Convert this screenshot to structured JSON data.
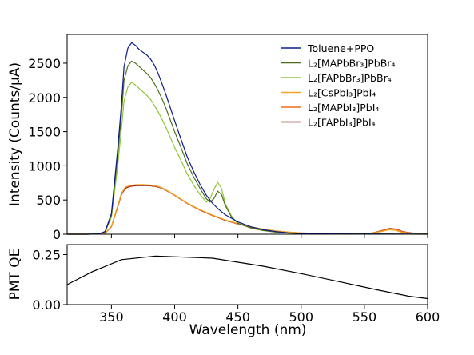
{
  "chart_data": [
    {
      "type": "line",
      "ylabel": "Intensity (Counts/μA)",
      "xlim": [
        315,
        600
      ],
      "ylim": [
        0,
        2920
      ],
      "yticks": [
        0,
        500,
        1000,
        1500,
        2000,
        2500
      ],
      "ytick_labels": [
        "0",
        "500",
        "1000",
        "1500",
        "2000",
        "2500"
      ],
      "grid": false,
      "legend_position": "top-right",
      "series": [
        {
          "name": "Toluene+PPO",
          "color": "#0d1a8c",
          "x": [
            315,
            330,
            340,
            345,
            350,
            355,
            358,
            360,
            363,
            366,
            369,
            372,
            375,
            378,
            381,
            384,
            387,
            390,
            393,
            396,
            400,
            405,
            410,
            415,
            420,
            425,
            430,
            435,
            440,
            450,
            460,
            470,
            480,
            490,
            500,
            520,
            540,
            560,
            580,
            600
          ],
          "y": [
            0,
            0,
            5,
            40,
            300,
            1250,
            1900,
            2450,
            2720,
            2800,
            2760,
            2700,
            2660,
            2620,
            2560,
            2470,
            2350,
            2200,
            2050,
            1880,
            1660,
            1390,
            1130,
            920,
            730,
            570,
            450,
            360,
            285,
            180,
            110,
            65,
            38,
            20,
            12,
            5,
            4,
            3,
            2,
            1
          ]
        },
        {
          "name": "L₂[MAPbBr₃]PbBr₄",
          "color": "#4e6e1e",
          "x": [
            315,
            330,
            340,
            345,
            350,
            355,
            358,
            360,
            363,
            366,
            369,
            372,
            375,
            378,
            381,
            384,
            387,
            390,
            393,
            396,
            400,
            405,
            410,
            415,
            420,
            425,
            428,
            431,
            434,
            437,
            440,
            445,
            450,
            460,
            470,
            480,
            490,
            500,
            520,
            540,
            560,
            580,
            600
          ],
          "y": [
            0,
            0,
            5,
            35,
            280,
            1150,
            1750,
            2250,
            2460,
            2530,
            2500,
            2450,
            2400,
            2350,
            2290,
            2200,
            2100,
            1980,
            1850,
            1700,
            1500,
            1270,
            1030,
            840,
            670,
            520,
            470,
            520,
            630,
            580,
            420,
            250,
            160,
            95,
            55,
            32,
            18,
            10,
            5,
            3,
            2,
            1,
            0
          ]
        },
        {
          "name": "L₂[FAPbBr₃]PbBr₄",
          "color": "#8fc63c",
          "x": [
            315,
            330,
            340,
            345,
            350,
            355,
            358,
            360,
            363,
            366,
            369,
            372,
            375,
            378,
            381,
            384,
            387,
            390,
            393,
            396,
            400,
            405,
            410,
            415,
            420,
            425,
            428,
            431,
            434,
            437,
            440,
            445,
            450,
            460,
            470,
            480,
            490,
            500,
            520,
            540,
            560,
            580,
            600
          ],
          "y": [
            0,
            0,
            5,
            30,
            250,
            1000,
            1550,
            1950,
            2150,
            2220,
            2180,
            2130,
            2080,
            2030,
            1970,
            1880,
            1790,
            1680,
            1570,
            1440,
            1270,
            1080,
            880,
            720,
            580,
            470,
            520,
            650,
            760,
            670,
            450,
            260,
            160,
            90,
            52,
            30,
            17,
            10,
            5,
            3,
            2,
            1,
            0
          ]
        },
        {
          "name": "L₂[CsPbI₃]PbI₄",
          "color": "#f5a623",
          "x": [
            315,
            330,
            340,
            345,
            350,
            355,
            358,
            361,
            365,
            370,
            375,
            380,
            385,
            390,
            395,
            400,
            405,
            410,
            420,
            430,
            440,
            450,
            460,
            470,
            480,
            490,
            500,
            520,
            540,
            555,
            565,
            570,
            575,
            580,
            590,
            600
          ],
          "y": [
            0,
            0,
            3,
            15,
            120,
            420,
            600,
            690,
            715,
            725,
            725,
            720,
            710,
            680,
            630,
            575,
            515,
            455,
            360,
            280,
            210,
            155,
            110,
            75,
            50,
            32,
            20,
            8,
            5,
            10,
            45,
            65,
            55,
            25,
            8,
            3
          ]
        },
        {
          "name": "L₂[MAPbI₃]PbI₄",
          "color": "#f26b1d",
          "x": [
            315,
            330,
            340,
            345,
            350,
            355,
            358,
            361,
            365,
            370,
            375,
            380,
            385,
            390,
            395,
            400,
            405,
            410,
            420,
            430,
            440,
            450,
            460,
            470,
            480,
            490,
            500,
            520,
            540,
            555,
            565,
            570,
            575,
            580,
            590,
            600
          ],
          "y": [
            0,
            0,
            3,
            15,
            115,
            410,
            595,
            685,
            710,
            720,
            720,
            715,
            705,
            675,
            625,
            570,
            510,
            450,
            355,
            275,
            205,
            150,
            107,
            72,
            48,
            30,
            19,
            8,
            5,
            12,
            55,
            80,
            70,
            35,
            10,
            3
          ]
        },
        {
          "name": "L₂[FAPbI₃]PbI₄",
          "color": "#8b1a0e",
          "x": [
            315,
            330,
            340,
            345,
            350,
            355,
            358,
            361,
            365,
            370,
            375,
            380,
            385,
            390,
            395,
            400,
            405,
            410,
            420,
            430,
            440,
            450,
            460,
            470,
            480,
            490,
            500,
            520,
            540,
            555,
            565,
            570,
            575,
            580,
            590,
            600
          ],
          "y": [
            0,
            0,
            3,
            14,
            110,
            400,
            580,
            670,
            700,
            710,
            712,
            708,
            698,
            670,
            622,
            568,
            508,
            448,
            352,
            272,
            202,
            148,
            105,
            70,
            46,
            29,
            18,
            7,
            5,
            12,
            60,
            85,
            75,
            40,
            12,
            3
          ]
        }
      ]
    },
    {
      "type": "line",
      "xlabel": "Wavelength (nm)",
      "ylabel": "PMT QE",
      "xlim": [
        315,
        600
      ],
      "ylim": [
        0,
        0.3
      ],
      "xticks": [
        350,
        400,
        450,
        500,
        550,
        600
      ],
      "xtick_labels": [
        "350",
        "400",
        "450",
        "500",
        "550",
        "600"
      ],
      "yticks": [
        0,
        0.25
      ],
      "ytick_labels": [
        "0.00",
        "0.25"
      ],
      "grid": false,
      "series": [
        {
          "color": "#000000",
          "x": [
            315,
            335,
            358,
            385,
            430,
            470,
            500,
            530,
            560,
            585,
            600
          ],
          "y": [
            0.1,
            0.165,
            0.225,
            0.243,
            0.232,
            0.192,
            0.155,
            0.115,
            0.074,
            0.042,
            0.03
          ]
        }
      ]
    }
  ]
}
